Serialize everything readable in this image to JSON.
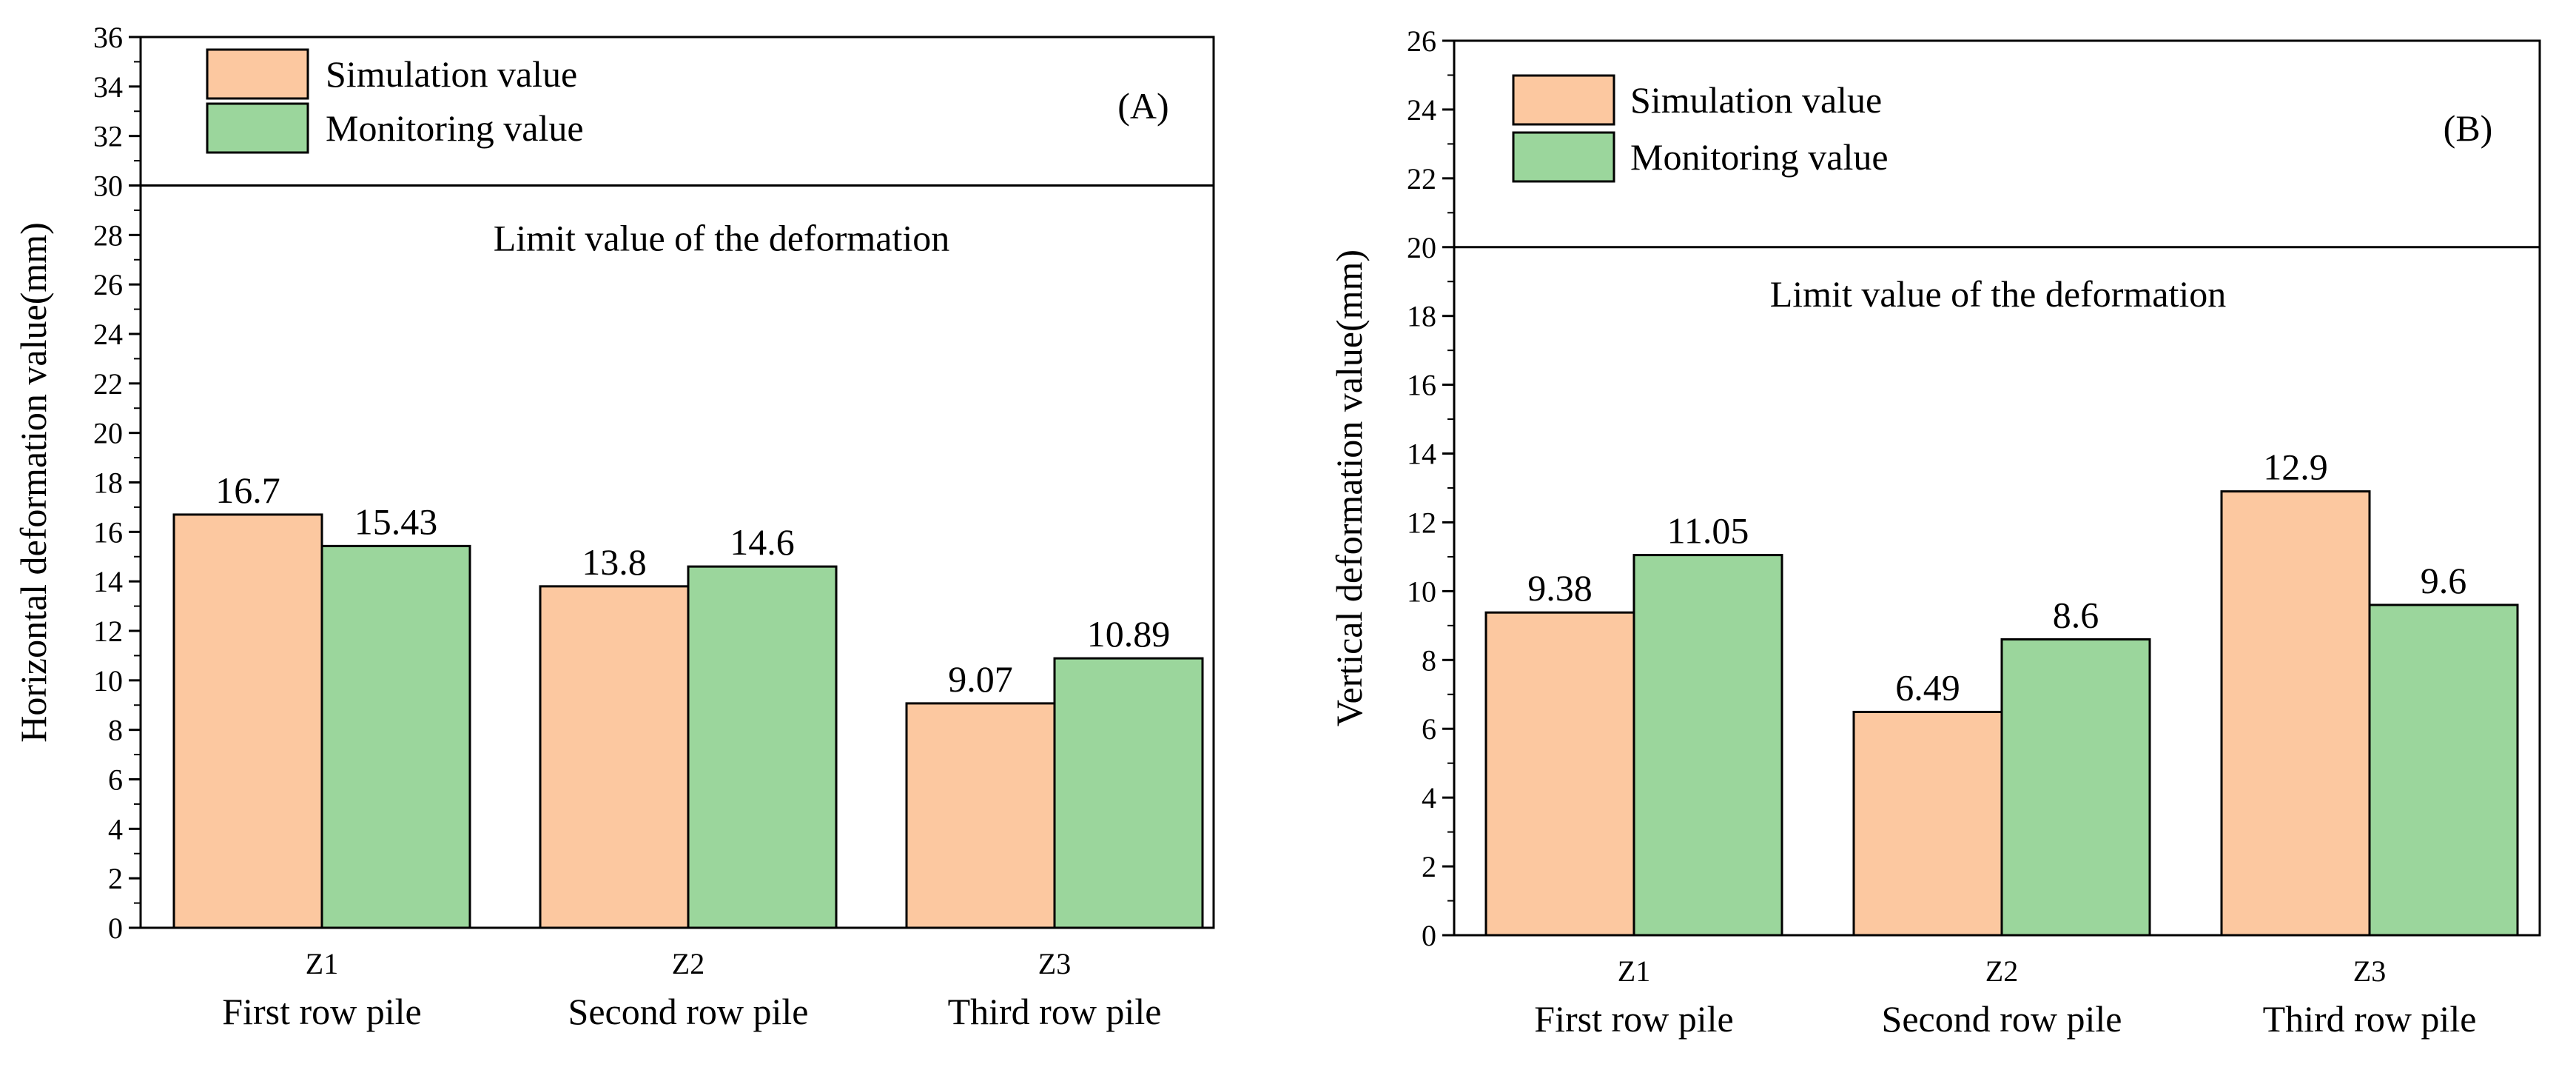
{
  "chart_data": [
    {
      "type": "bar",
      "panel_label": "(A)",
      "ylabel": "Horizontal deformation value(mm)",
      "ylim": [
        0,
        36
      ],
      "ytick_step": 2,
      "categories": [
        "Z1",
        "Z2",
        "Z3"
      ],
      "group_labels": [
        "First row pile",
        "Second row pile",
        "Third row pile"
      ],
      "series": [
        {
          "name": "Simulation value",
          "values": [
            16.7,
            13.8,
            9.07
          ],
          "labels": [
            "16.7",
            "13.8",
            "9.07"
          ],
          "color": "#fcc8a0"
        },
        {
          "name": "Monitoring value",
          "values": [
            15.43,
            14.6,
            10.89
          ],
          "labels": [
            "15.43",
            "14.6",
            "10.89"
          ],
          "color": "#9bd69c"
        }
      ],
      "limit_line": {
        "value": 30,
        "label": "Limit value of the deformation"
      },
      "legend_position": "top-left",
      "grid": false
    },
    {
      "type": "bar",
      "panel_label": "(B)",
      "ylabel": "Vertical deformation value(mm)",
      "ylim": [
        0,
        26
      ],
      "ytick_step": 2,
      "categories": [
        "Z1",
        "Z2",
        "Z3"
      ],
      "group_labels": [
        "First row pile",
        "Second row pile",
        "Third row pile"
      ],
      "series": [
        {
          "name": "Simulation value",
          "values": [
            9.38,
            6.49,
            12.9
          ],
          "labels": [
            "9.38",
            "6.49",
            "12.9"
          ],
          "color": "#fcc8a0"
        },
        {
          "name": "Monitoring value",
          "values": [
            11.05,
            8.6,
            9.6
          ],
          "labels": [
            "11.05",
            "8.6",
            "9.6"
          ],
          "color": "#9bd69c"
        }
      ],
      "limit_line": {
        "value": 20,
        "label": "Limit value of the deformation"
      },
      "legend_position": "top-left",
      "grid": false
    }
  ]
}
